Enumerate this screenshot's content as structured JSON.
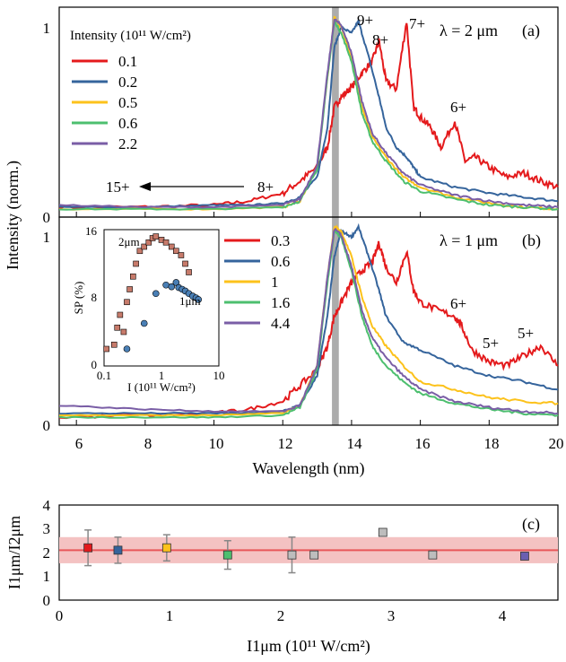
{
  "figure": {
    "y_axis_label_ab": "Intensity (norm.)",
    "x_axis_label_ab": "Wavelength (nm)",
    "x_ticks_ab": [
      "6",
      "8",
      "10",
      "12",
      "14",
      "16",
      "18",
      "20"
    ],
    "y_ticks_ab": [
      "0",
      "1"
    ]
  },
  "panel_a": {
    "label": "(a)",
    "wavelength_label": "λ = 2 μm",
    "legend_title": "Intensity (10¹¹ W/cm²)",
    "legend": [
      "0.1",
      "0.2",
      "0.5",
      "0.6",
      "2.2"
    ],
    "annotations": [
      "9+",
      "8+",
      "7+",
      "6+",
      "15+",
      "8+"
    ]
  },
  "panel_b": {
    "label": "(b)",
    "wavelength_label": "λ = 1 μm",
    "legend": [
      "0.3",
      "0.6",
      "1",
      "1.6",
      "4.4"
    ],
    "annotations": [
      "6+",
      "5+",
      "5+"
    ]
  },
  "inset": {
    "ylabel": "SP (%)",
    "xlabel": "I (10¹¹ W/cm²)",
    "x_ticks": [
      "0.1",
      "1",
      "10"
    ],
    "y_ticks": [
      "0",
      "8",
      "16"
    ],
    "label_2um": "2μm",
    "label_1um": "1μm"
  },
  "panel_c": {
    "label": "(c)",
    "ylabel": "I1μm/I2μm",
    "xlabel": "I1μm (10¹¹ W/cm²)",
    "x_ticks": [
      "0",
      "1",
      "2",
      "3",
      "4"
    ],
    "y_ticks": [
      "0",
      "1",
      "2",
      "3",
      "4"
    ]
  },
  "colors": {
    "red": "#e41a1c",
    "blue": "#35649c",
    "yellow": "#fcc21b",
    "green": "#4dbf6f",
    "purple": "#7a5ea6",
    "gray_band": "#9e9e9e",
    "pink_band": "#f4c2c2",
    "brown_marker": "#c77b6b"
  },
  "chart_data": [
    {
      "type": "line",
      "title": "λ = 2 μm",
      "xlabel": "Wavelength (nm)",
      "ylabel": "Intensity (norm.)",
      "xlim": [
        5.5,
        20
      ],
      "ylim": [
        0,
        1.05
      ],
      "series": [
        {
          "name": "0.1",
          "color": "#e41a1c",
          "x": [
            5.5,
            8,
            10,
            11,
            12,
            12.5,
            13,
            13.3,
            13.5,
            13.7,
            14,
            14.3,
            14.6,
            14.8,
            15,
            15.3,
            15.6,
            15.8,
            16,
            16.3,
            16.6,
            17,
            17.3,
            17.6,
            18,
            18.5,
            19,
            19.5,
            20
          ],
          "y": [
            0.05,
            0.05,
            0.06,
            0.08,
            0.12,
            0.18,
            0.25,
            0.35,
            0.55,
            0.6,
            0.65,
            0.72,
            0.78,
            0.88,
            0.68,
            0.64,
            0.98,
            0.55,
            0.5,
            0.45,
            0.35,
            0.48,
            0.28,
            0.3,
            0.25,
            0.2,
            0.22,
            0.18,
            0.15
          ]
        },
        {
          "name": "0.2",
          "color": "#35649c",
          "x": [
            5.5,
            8,
            10,
            11,
            12,
            12.5,
            13,
            13.3,
            13.5,
            13.7,
            14,
            14.2,
            14.5,
            14.8,
            15,
            15.3,
            15.6,
            15.8,
            16,
            17,
            18,
            19,
            20
          ],
          "y": [
            0.05,
            0.05,
            0.06,
            0.06,
            0.07,
            0.1,
            0.2,
            0.45,
            0.85,
            0.95,
            0.92,
            0.98,
            0.8,
            0.6,
            0.45,
            0.35,
            0.3,
            0.25,
            0.2,
            0.15,
            0.12,
            0.1,
            0.08
          ]
        },
        {
          "name": "0.5",
          "color": "#fcc21b",
          "x": [
            5.5,
            8,
            10,
            12,
            12.5,
            13,
            13.3,
            13.5,
            13.7,
            14,
            14.3,
            14.6,
            15,
            15.5,
            16,
            17,
            18,
            19,
            20
          ],
          "y": [
            0.04,
            0.04,
            0.04,
            0.05,
            0.08,
            0.25,
            0.7,
            1.0,
            0.95,
            0.8,
            0.55,
            0.4,
            0.3,
            0.2,
            0.15,
            0.1,
            0.07,
            0.05,
            0.04
          ]
        },
        {
          "name": "0.6",
          "color": "#4dbf6f",
          "x": [
            5.5,
            8,
            10,
            12,
            12.5,
            13,
            13.3,
            13.5,
            13.7,
            14,
            14.3,
            14.6,
            15,
            15.5,
            16,
            17,
            18,
            19,
            20
          ],
          "y": [
            0.04,
            0.04,
            0.04,
            0.05,
            0.08,
            0.24,
            0.7,
            0.98,
            0.92,
            0.78,
            0.52,
            0.38,
            0.28,
            0.18,
            0.13,
            0.09,
            0.06,
            0.05,
            0.04
          ]
        },
        {
          "name": "2.2",
          "color": "#7a5ea6",
          "x": [
            5.5,
            8,
            10,
            12,
            12.5,
            13,
            13.3,
            13.5,
            13.7,
            14,
            14.3,
            14.6,
            15,
            15.5,
            16,
            17,
            18,
            19,
            20
          ],
          "y": [
            0.06,
            0.05,
            0.05,
            0.06,
            0.09,
            0.26,
            0.72,
            0.99,
            0.96,
            0.82,
            0.58,
            0.42,
            0.32,
            0.22,
            0.16,
            0.11,
            0.08,
            0.06,
            0.05
          ]
        }
      ]
    },
    {
      "type": "line",
      "title": "λ = 1 μm",
      "xlabel": "Wavelength (nm)",
      "ylabel": "Intensity (norm.)",
      "xlim": [
        5.5,
        20
      ],
      "ylim": [
        0,
        1.05
      ],
      "series": [
        {
          "name": "0.3",
          "color": "#e41a1c",
          "x": [
            5.5,
            8,
            10,
            11,
            12,
            12.5,
            13,
            13.3,
            13.5,
            13.7,
            14,
            14.3,
            14.6,
            14.8,
            15,
            15.3,
            15.6,
            15.8,
            16,
            16.5,
            17,
            17.2,
            17.5,
            18,
            18.5,
            19,
            19.5,
            20
          ],
          "y": [
            0.04,
            0.05,
            0.06,
            0.08,
            0.12,
            0.2,
            0.28,
            0.4,
            0.55,
            0.62,
            0.72,
            0.78,
            0.82,
            0.92,
            0.8,
            0.72,
            0.88,
            0.68,
            0.62,
            0.58,
            0.55,
            0.5,
            0.38,
            0.32,
            0.3,
            0.35,
            0.4,
            0.3
          ]
        },
        {
          "name": "0.6",
          "color": "#35649c",
          "x": [
            5.5,
            8,
            10,
            11,
            12,
            12.5,
            13,
            13.3,
            13.5,
            13.7,
            14,
            14.2,
            14.5,
            14.8,
            15,
            15.5,
            16,
            17,
            18,
            19,
            20
          ],
          "y": [
            0.06,
            0.06,
            0.06,
            0.06,
            0.07,
            0.1,
            0.25,
            0.55,
            0.85,
            0.98,
            0.95,
            1.0,
            0.85,
            0.68,
            0.55,
            0.42,
            0.38,
            0.3,
            0.25,
            0.22,
            0.18
          ]
        },
        {
          "name": "1",
          "color": "#fcc21b",
          "x": [
            5.5,
            8,
            10,
            12,
            12.5,
            13,
            13.3,
            13.5,
            13.7,
            14,
            14.3,
            14.6,
            15,
            15.5,
            16,
            17,
            18,
            19,
            20
          ],
          "y": [
            0.05,
            0.05,
            0.05,
            0.06,
            0.1,
            0.3,
            0.75,
            1.0,
            0.98,
            0.85,
            0.65,
            0.5,
            0.4,
            0.3,
            0.22,
            0.18,
            0.14,
            0.12,
            0.11
          ]
        },
        {
          "name": "1.6",
          "color": "#4dbf6f",
          "x": [
            5.5,
            8,
            10,
            12,
            12.5,
            13,
            13.3,
            13.5,
            13.7,
            14,
            14.3,
            14.6,
            15,
            15.5,
            16,
            17,
            18,
            19,
            20
          ],
          "y": [
            0.04,
            0.04,
            0.04,
            0.05,
            0.09,
            0.28,
            0.72,
            0.98,
            0.95,
            0.78,
            0.55,
            0.4,
            0.3,
            0.22,
            0.16,
            0.11,
            0.08,
            0.06,
            0.05
          ]
        },
        {
          "name": "4.4",
          "color": "#7a5ea6",
          "x": [
            5.5,
            8,
            10,
            12,
            12.5,
            13,
            13.3,
            13.5,
            13.7,
            14,
            14.3,
            14.6,
            15,
            15.5,
            16,
            17,
            18,
            19,
            20
          ],
          "y": [
            0.1,
            0.08,
            0.07,
            0.07,
            0.1,
            0.3,
            0.75,
            0.99,
            0.96,
            0.8,
            0.58,
            0.44,
            0.34,
            0.25,
            0.18,
            0.12,
            0.09,
            0.07,
            0.06
          ]
        }
      ]
    },
    {
      "type": "scatter",
      "xlabel": "I (10¹¹ W/cm²)",
      "ylabel": "SP (%)",
      "xscale": "log",
      "xlim": [
        0.1,
        10
      ],
      "ylim": [
        0,
        16
      ],
      "series": [
        {
          "name": "2μm",
          "color": "#c77b6b",
          "x": [
            0.11,
            0.15,
            0.17,
            0.19,
            0.22,
            0.25,
            0.28,
            0.32,
            0.36,
            0.42,
            0.5,
            0.6,
            0.7,
            0.8,
            1.0,
            1.2,
            1.5,
            1.8,
            2.2,
            2.6,
            3.0
          ],
          "y": [
            2.0,
            2.5,
            4.5,
            6.0,
            4.0,
            7.5,
            9.0,
            10.5,
            12.0,
            13.5,
            14.0,
            14.5,
            15.0,
            15.2,
            14.8,
            14.5,
            14.0,
            13.5,
            13.0,
            12.0,
            11.0
          ]
        },
        {
          "name": "1μm",
          "color": "#4a7fb5",
          "x": [
            0.25,
            0.5,
            0.8,
            1.2,
            1.5,
            1.8,
            2.0,
            2.3,
            2.6,
            3.0,
            3.5,
            4.0,
            4.4
          ],
          "y": [
            2.0,
            5.0,
            8.5,
            9.5,
            9.3,
            9.8,
            9.2,
            9.0,
            8.8,
            8.5,
            8.2,
            8.0,
            7.8
          ]
        }
      ]
    },
    {
      "type": "scatter",
      "xlabel": "I1μm (10¹¹ W/cm²)",
      "ylabel": "I1μm/I2μm",
      "xlim": [
        0,
        4.5
      ],
      "ylim": [
        0,
        4
      ],
      "reference_line": 2.1,
      "band": [
        1.55,
        2.65
      ],
      "points": [
        {
          "x": 0.26,
          "y": 2.2,
          "err": 0.75,
          "color": "#e41a1c"
        },
        {
          "x": 0.53,
          "y": 2.1,
          "err": 0.55,
          "color": "#35649c"
        },
        {
          "x": 0.97,
          "y": 2.2,
          "err": 0.55,
          "color": "#fcc21b"
        },
        {
          "x": 1.52,
          "y": 1.9,
          "err": 0.6,
          "color": "#4dbf6f"
        },
        {
          "x": 2.1,
          "y": 1.9,
          "err": 0.75,
          "color": "#bdbdbd"
        },
        {
          "x": 2.3,
          "y": 1.9,
          "err": 0.15,
          "color": "#bdbdbd"
        },
        {
          "x": 2.92,
          "y": 2.85,
          "err": 0,
          "color": "#bdbdbd"
        },
        {
          "x": 3.37,
          "y": 1.9,
          "err": 0,
          "color": "#bdbdbd"
        },
        {
          "x": 4.2,
          "y": 1.85,
          "err": 0,
          "color": "#6a5fb0"
        }
      ]
    }
  ]
}
